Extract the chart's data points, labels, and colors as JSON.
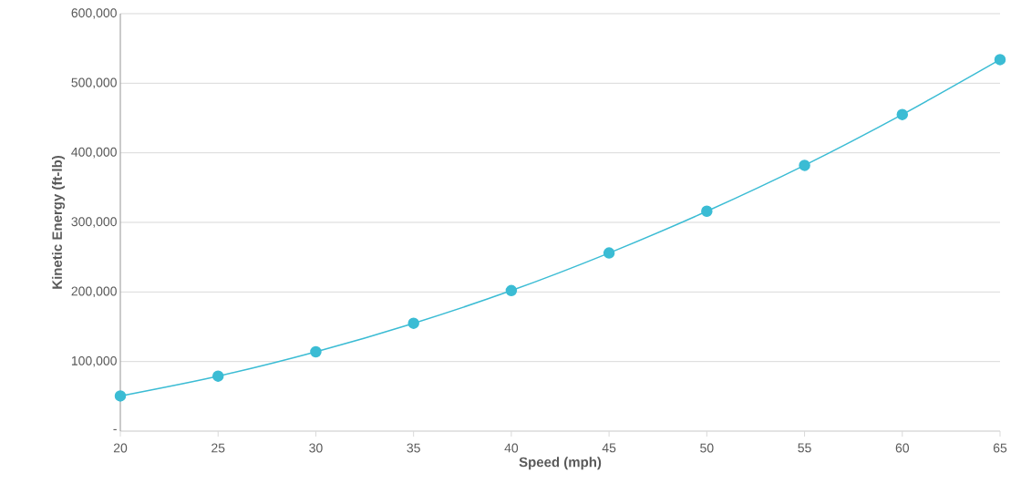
{
  "chart_data": {
    "type": "line",
    "xlabel": "Speed (mph)",
    "ylabel": "Kinetic Energy (ft-lb)",
    "x": [
      20,
      25,
      30,
      35,
      40,
      45,
      50,
      55,
      60,
      65
    ],
    "values": [
      50500,
      79000,
      114000,
      155000,
      202000,
      256000,
      316000,
      382000,
      455000,
      534000
    ],
    "color": "#3bbcd4",
    "marker": "circle",
    "line_style": "solid",
    "grid": "y",
    "xlim": [
      20,
      65
    ],
    "xticks": [
      20,
      25,
      30,
      35,
      40,
      45,
      50,
      55,
      60,
      65
    ],
    "ylim": [
      0,
      600000
    ],
    "yticks": [
      {
        "value": 0,
        "label": "-"
      },
      {
        "value": 100000,
        "label": "100,000"
      },
      {
        "value": 200000,
        "label": "200,000"
      },
      {
        "value": 300000,
        "label": "300,000"
      },
      {
        "value": 400000,
        "label": "400,000"
      },
      {
        "value": 500000,
        "label": "500,000"
      },
      {
        "value": 600000,
        "label": "600,000"
      }
    ]
  }
}
